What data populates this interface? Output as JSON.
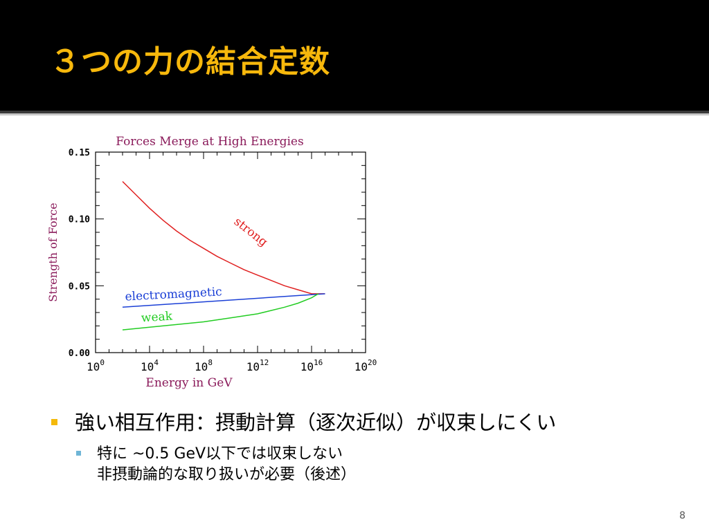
{
  "slide": {
    "title": "３つの力の結合定数",
    "page_number": "8",
    "accent_color": "#f7b80c",
    "title_bar_color": "#000000"
  },
  "bullets": [
    {
      "text": "強い相互作用：摂動計算（逐次近似）が収束しにくい",
      "sub": [
        {
          "lines": [
            "特に ~0.5 GeV以下では収束しない",
            "非摂動論的な取り扱いが必要（後述）"
          ]
        }
      ]
    }
  ],
  "chart_data": {
    "type": "line",
    "title": "Forces Merge at High Energies",
    "xlabel": "Energy in GeV",
    "ylabel": "Strength of Force",
    "xscale": "log10",
    "xlim_exponent": [
      0,
      20
    ],
    "ylim": [
      0,
      0.15
    ],
    "x_ticks": [
      {
        "base": "10",
        "exp": "0",
        "value": 0
      },
      {
        "base": "10",
        "exp": "4",
        "value": 4
      },
      {
        "base": "10",
        "exp": "8",
        "value": 8
      },
      {
        "base": "10",
        "exp": "12",
        "value": 12
      },
      {
        "base": "10",
        "exp": "16",
        "value": 16
      },
      {
        "base": "10",
        "exp": "20",
        "value": 20
      }
    ],
    "y_ticks": [
      {
        "label": "0.00",
        "value": 0.0
      },
      {
        "label": "0.05",
        "value": 0.05
      },
      {
        "label": "0.10",
        "value": 0.1
      },
      {
        "label": "0.15",
        "value": 0.15
      }
    ],
    "series": [
      {
        "name": "strong",
        "color": "#e02020",
        "x_log10": [
          2.0,
          3.0,
          4.0,
          5.0,
          6.0,
          7.0,
          8.0,
          9.0,
          10.0,
          11.0,
          12.0,
          13.0,
          14.0,
          15.0,
          16.0,
          17.0
        ],
        "y": [
          0.128,
          0.118,
          0.108,
          0.099,
          0.091,
          0.084,
          0.078,
          0.072,
          0.067,
          0.062,
          0.058,
          0.054,
          0.05,
          0.047,
          0.044,
          0.044
        ]
      },
      {
        "name": "electromagnetic",
        "color": "#1a3fd6",
        "x_log10": [
          2.0,
          17.0
        ],
        "y": [
          0.034,
          0.044
        ]
      },
      {
        "name": "weak",
        "color": "#22cc22",
        "x_log10": [
          2.0,
          4.0,
          6.0,
          8.0,
          10.0,
          12.0,
          14.0,
          15.0,
          16.0,
          16.5
        ],
        "y": [
          0.017,
          0.019,
          0.021,
          0.023,
          0.026,
          0.029,
          0.034,
          0.037,
          0.041,
          0.044
        ]
      }
    ],
    "title_color": "#8a1a5a",
    "label_color": "#8a1a5a"
  }
}
